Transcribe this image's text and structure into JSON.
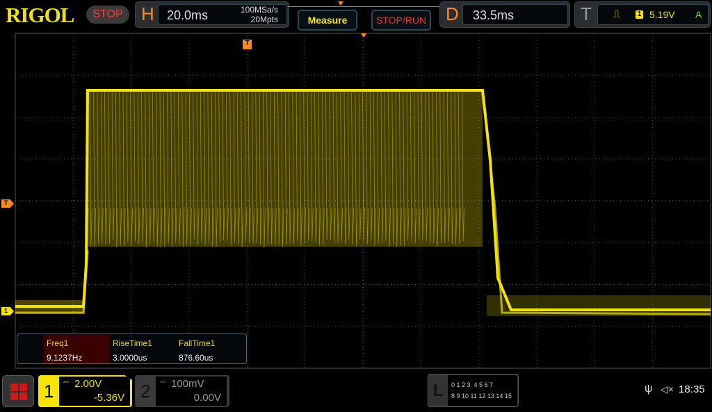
{
  "brand": "RIGOL",
  "run_state": "STOP",
  "horizontal": {
    "letter": "H",
    "timebase": "20.0ms",
    "sample_rate": "100MSa/s",
    "memory_depth": "20Mpts"
  },
  "buttons": {
    "measure": "Measure",
    "stop_run": "STOP/RUN"
  },
  "delay": {
    "letter": "D",
    "value": "33.5ms"
  },
  "trigger": {
    "letter": "T",
    "edge_icon": "rising-edge-icon",
    "source": "1",
    "level": "5.19V",
    "mode": "A"
  },
  "markers": {
    "trigger_pos": "T",
    "trigger_level": "T",
    "ch1_ground": "1"
  },
  "measurements": [
    {
      "label": "Freq1",
      "value": "9.1237Hz"
    },
    {
      "label": "RiseTime1",
      "value": "3.0000us"
    },
    {
      "label": "FallTime1",
      "value": "876.60us"
    }
  ],
  "channels": [
    {
      "num": "1",
      "coupling": "DC",
      "scale": "2.00V",
      "offset": "-5.36V",
      "active": true
    },
    {
      "num": "2",
      "coupling": "DC",
      "scale": "100mV",
      "offset": "0.00V",
      "active": false
    }
  ],
  "logic": {
    "letter": "L",
    "row1": "0 1 2 3  4 5 6 7",
    "row2": "8 9 10 11 12 13 14 15"
  },
  "status": {
    "time": "18:35",
    "usb_icon": "usb-icon",
    "sound_icon": "speaker-muted-icon"
  },
  "colors": {
    "ch1": "#f5e400",
    "accent": "#ff8a1a",
    "stop": "#ff3030"
  }
}
